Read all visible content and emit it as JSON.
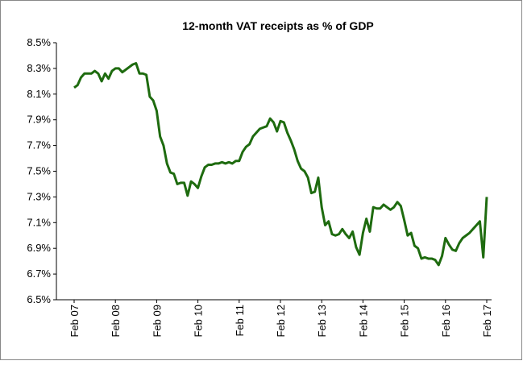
{
  "chart_data": {
    "type": "line",
    "title": "12-month VAT receipts as % of GDP",
    "categories": [
      "Feb 07",
      null,
      null,
      null,
      null,
      null,
      null,
      null,
      null,
      null,
      null,
      null,
      "Feb 08",
      null,
      null,
      null,
      null,
      null,
      null,
      null,
      null,
      null,
      null,
      null,
      "Feb 09",
      null,
      null,
      null,
      null,
      null,
      null,
      null,
      null,
      null,
      null,
      null,
      "Feb 10",
      null,
      null,
      null,
      null,
      null,
      null,
      null,
      null,
      null,
      null,
      null,
      "Feb 11",
      null,
      null,
      null,
      null,
      null,
      null,
      null,
      null,
      null,
      null,
      null,
      "Feb 12",
      null,
      null,
      null,
      null,
      null,
      null,
      null,
      null,
      null,
      null,
      null,
      "Feb 13",
      null,
      null,
      null,
      null,
      null,
      null,
      null,
      null,
      null,
      null,
      null,
      "Feb 14",
      null,
      null,
      null,
      null,
      null,
      null,
      null,
      null,
      null,
      null,
      null,
      "Feb 15",
      null,
      null,
      null,
      null,
      null,
      null,
      null,
      null,
      null,
      null,
      null,
      "Feb 16",
      null,
      null,
      null,
      null,
      null,
      null,
      null,
      null,
      null,
      null,
      null,
      "Feb 17"
    ],
    "series": [
      {
        "name": "VAT receipts",
        "color": "#1e6b0f",
        "values": [
          8.15,
          8.17,
          8.23,
          8.26,
          8.26,
          8.26,
          8.28,
          8.26,
          8.2,
          8.26,
          8.22,
          8.28,
          8.3,
          8.3,
          8.27,
          8.29,
          8.31,
          8.33,
          8.34,
          8.26,
          8.26,
          8.25,
          8.08,
          8.05,
          7.97,
          7.77,
          7.7,
          7.56,
          7.49,
          7.48,
          7.4,
          7.41,
          7.41,
          7.31,
          7.42,
          7.4,
          7.37,
          7.46,
          7.53,
          7.55,
          7.55,
          7.56,
          7.56,
          7.57,
          7.56,
          7.57,
          7.56,
          7.58,
          7.58,
          7.65,
          7.69,
          7.71,
          7.77,
          7.8,
          7.83,
          7.84,
          7.85,
          7.91,
          7.88,
          7.81,
          7.89,
          7.88,
          7.8,
          7.74,
          7.67,
          7.58,
          7.52,
          7.5,
          7.45,
          7.33,
          7.34,
          7.45,
          7.22,
          7.08,
          7.11,
          7.01,
          7.0,
          7.01,
          7.05,
          7.01,
          6.98,
          7.03,
          6.91,
          6.85,
          7.02,
          7.13,
          7.03,
          7.22,
          7.21,
          7.21,
          7.24,
          7.22,
          7.2,
          7.22,
          7.26,
          7.23,
          7.12,
          7.0,
          7.02,
          6.92,
          6.9,
          6.82,
          6.83,
          6.82,
          6.82,
          6.81,
          6.77,
          6.84,
          6.98,
          6.93,
          6.89,
          6.88,
          6.94,
          6.98,
          7.0,
          7.02,
          7.05,
          7.08,
          7.11,
          6.83,
          7.3
        ]
      }
    ],
    "ylim": [
      6.5,
      8.5
    ],
    "yticks": [
      {
        "value": 6.5,
        "label": "6.5%"
      },
      {
        "value": 6.7,
        "label": "6.7%"
      },
      {
        "value": 6.9,
        "label": "6.9%"
      },
      {
        "value": 7.1,
        "label": "7.1%"
      },
      {
        "value": 7.3,
        "label": "7.3%"
      },
      {
        "value": 7.5,
        "label": "7.5%"
      },
      {
        "value": 7.7,
        "label": "7.7%"
      },
      {
        "value": 7.9,
        "label": "7.9%"
      },
      {
        "value": 8.1,
        "label": "8.1%"
      },
      {
        "value": 8.3,
        "label": "8.3%"
      },
      {
        "value": 8.5,
        "label": "8.5%"
      }
    ],
    "grid": false
  }
}
